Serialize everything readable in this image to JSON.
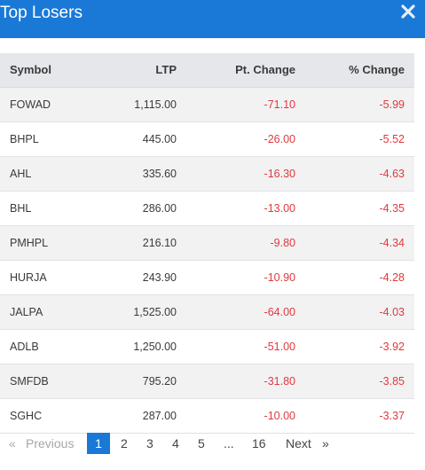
{
  "header": {
    "title": "Top Losers",
    "close_icon": "close-icon"
  },
  "table": {
    "columns": [
      "Symbol",
      "LTP",
      "Pt. Change",
      "% Change"
    ],
    "rows": [
      [
        "FOWAD",
        "1,115.00",
        "-71.10",
        "-5.99"
      ],
      [
        "BHPL",
        "445.00",
        "-26.00",
        "-5.52"
      ],
      [
        "AHL",
        "335.60",
        "-16.30",
        "-4.63"
      ],
      [
        "BHL",
        "286.00",
        "-13.00",
        "-4.35"
      ],
      [
        "PMHPL",
        "216.10",
        "-9.80",
        "-4.34"
      ],
      [
        "HURJA",
        "243.90",
        "-10.90",
        "-4.28"
      ],
      [
        "JALPA",
        "1,525.00",
        "-64.00",
        "-4.03"
      ],
      [
        "ADLB",
        "1,250.00",
        "-51.00",
        "-3.92"
      ],
      [
        "SMFDB",
        "795.20",
        "-31.80",
        "-3.85"
      ],
      [
        "SGHC",
        "287.00",
        "-10.00",
        "-3.37"
      ]
    ]
  },
  "pagination": {
    "prev_arrow": "«",
    "previous": "Previous",
    "pages": [
      "1",
      "2",
      "3",
      "4",
      "5"
    ],
    "ellipsis": "...",
    "last": "16",
    "next": "Next",
    "next_arrow": "»",
    "current": "1"
  },
  "colors": {
    "accent": "#1a79d6",
    "negative": "#e0393e"
  }
}
